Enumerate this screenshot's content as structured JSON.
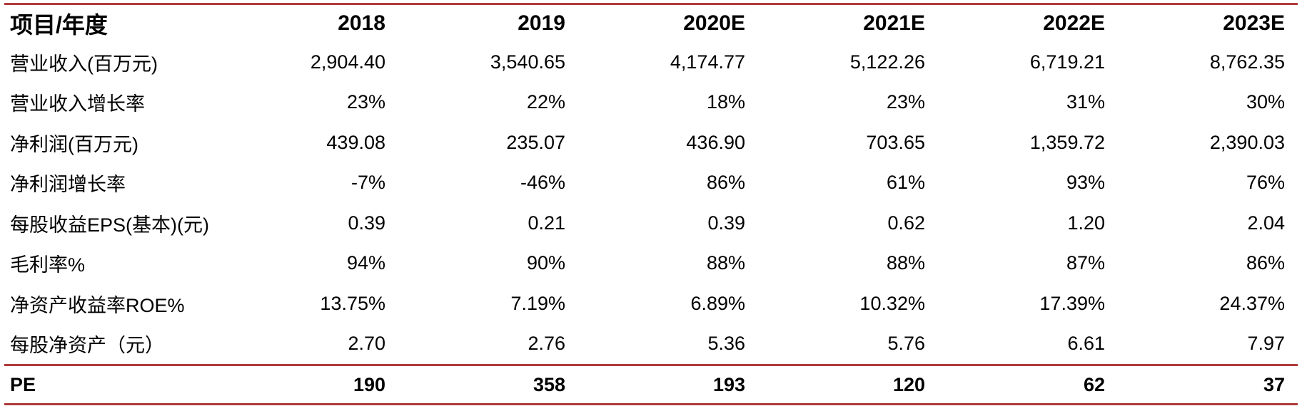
{
  "chart_data": {
    "type": "table",
    "header": {
      "label": "项目/年度",
      "years": [
        "2018",
        "2019",
        "2020E",
        "2021E",
        "2022E",
        "2023E"
      ]
    },
    "rows": [
      {
        "label": "营业收入(百万元)",
        "values": [
          "2,904.40",
          "3,540.65",
          "4,174.77",
          "5,122.26",
          "6,719.21",
          "8,762.35"
        ]
      },
      {
        "label": "营业收入增长率",
        "values": [
          "23%",
          "22%",
          "18%",
          "23%",
          "31%",
          "30%"
        ]
      },
      {
        "label": "净利润(百万元)",
        "values": [
          "439.08",
          "235.07",
          "436.90",
          "703.65",
          "1,359.72",
          "2,390.03"
        ]
      },
      {
        "label": "净利润增长率",
        "values": [
          "-7%",
          "-46%",
          "86%",
          "61%",
          "93%",
          "76%"
        ]
      },
      {
        "label": "每股收益EPS(基本)(元)",
        "values": [
          "0.39",
          "0.21",
          "0.39",
          "0.62",
          "1.20",
          "2.04"
        ]
      },
      {
        "label": "毛利率%",
        "values": [
          "94%",
          "90%",
          "88%",
          "88%",
          "87%",
          "86%"
        ]
      },
      {
        "label": "净资产收益率ROE%",
        "values": [
          "13.75%",
          "7.19%",
          "6.89%",
          "10.32%",
          "17.39%",
          "24.37%"
        ]
      },
      {
        "label": "每股净资产（元）",
        "values": [
          "2.70",
          "2.76",
          "5.36",
          "5.76",
          "6.61",
          "7.97"
        ]
      }
    ],
    "footer": {
      "label": "PE",
      "values": [
        "190",
        "358",
        "193",
        "120",
        "62",
        "37"
      ]
    }
  },
  "colors": {
    "rule": "#b03a3a",
    "text": "#000000",
    "background": "#ffffff"
  }
}
